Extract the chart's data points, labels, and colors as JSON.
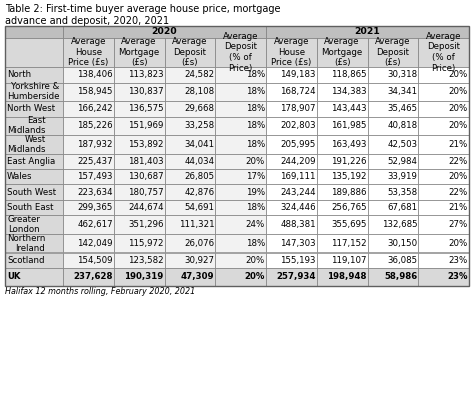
{
  "title": "Table 2: First-time buyer average house price, mortgage\nadvance and deposit, 2020, 2021",
  "footer": "Halifax 12 months rolling, February 2020, 2021",
  "row_labels": [
    "North",
    "Yorkshire &\nHumberside",
    "North West",
    "East\nMidlands",
    "West\nMidlands",
    "East Anglia",
    "Wales",
    "South West",
    "South East",
    "Greater\nLondon",
    "Northern\nIreland",
    "Scotland",
    "UK"
  ],
  "col_headers": [
    "Average\nHouse\nPrice (£s)",
    "Average\nMortgage\n(£s)",
    "Average\nDeposit\n(£s)",
    "Average\nDeposit\n(% of\nPrice)",
    "Average\nHouse\nPrice (£s)",
    "Average\nMortgage\n(£s)",
    "Average\nDeposit\n(£s)",
    "Average\nDeposit\n(% of\nPrice)"
  ],
  "data": [
    [
      "138,406",
      "113,823",
      "24,582",
      "18%",
      "149,183",
      "118,865",
      "30,318",
      "20%"
    ],
    [
      "158,945",
      "130,837",
      "28,108",
      "18%",
      "168,724",
      "134,383",
      "34,341",
      "20%"
    ],
    [
      "166,242",
      "136,575",
      "29,668",
      "18%",
      "178,907",
      "143,443",
      "35,465",
      "20%"
    ],
    [
      "185,226",
      "151,969",
      "33,258",
      "18%",
      "202,803",
      "161,985",
      "40,818",
      "20%"
    ],
    [
      "187,932",
      "153,892",
      "34,041",
      "18%",
      "205,995",
      "163,493",
      "42,503",
      "21%"
    ],
    [
      "225,437",
      "181,403",
      "44,034",
      "20%",
      "244,209",
      "191,226",
      "52,984",
      "22%"
    ],
    [
      "157,493",
      "130,687",
      "26,805",
      "17%",
      "169,111",
      "135,192",
      "33,919",
      "20%"
    ],
    [
      "223,634",
      "180,757",
      "42,876",
      "19%",
      "243,244",
      "189,886",
      "53,358",
      "22%"
    ],
    [
      "299,365",
      "244,674",
      "54,691",
      "18%",
      "324,446",
      "256,765",
      "67,681",
      "21%"
    ],
    [
      "462,617",
      "351,296",
      "111,321",
      "24%",
      "488,381",
      "355,695",
      "132,685",
      "27%"
    ],
    [
      "142,049",
      "115,972",
      "26,076",
      "18%",
      "147,303",
      "117,152",
      "30,150",
      "20%"
    ],
    [
      "154,509",
      "123,582",
      "30,927",
      "20%",
      "155,193",
      "119,107",
      "36,085",
      "23%"
    ],
    [
      "237,628",
      "190,319",
      "47,309",
      "20%",
      "257,934",
      "198,948",
      "58,986",
      "23%"
    ]
  ],
  "two_line_rows": [
    1,
    3,
    4,
    9,
    10
  ],
  "header_bg": "#bfbfbf",
  "subheader_bg": "#d9d9d9",
  "cell_bg_left": "#f2f2f2",
  "cell_bg_right": "#ffffff",
  "uk_bg": "#d9d9d9",
  "border_color": "#7f7f7f",
  "title_fontsize": 7.0,
  "header_fontsize": 6.2,
  "cell_fontsize": 6.2,
  "footer_fontsize": 5.8,
  "fig_width": 4.74,
  "fig_height": 3.99,
  "dpi": 100
}
